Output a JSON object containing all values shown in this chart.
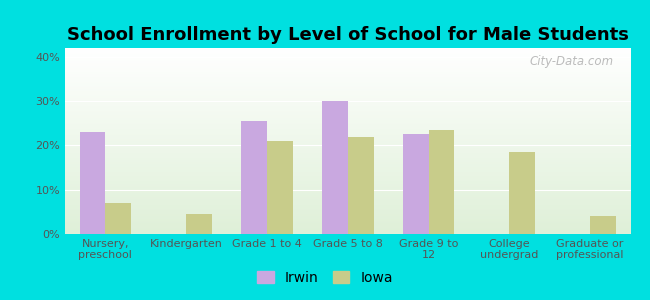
{
  "title": "School Enrollment by Level of School for Male Students",
  "categories": [
    "Nursery,\npreschool",
    "Kindergarten",
    "Grade 1 to 4",
    "Grade 5 to 8",
    "Grade 9 to\n12",
    "College\nundergrad",
    "Graduate or\nprofessional"
  ],
  "irwin_values": [
    23,
    0,
    25.5,
    30,
    22.5,
    0,
    0
  ],
  "iowa_values": [
    7,
    4.5,
    21,
    22,
    23.5,
    18.5,
    4
  ],
  "irwin_color": "#c9a8e0",
  "iowa_color": "#c8cc8a",
  "background_outer": "#00e0e0",
  "grad_top": "#ffffff",
  "grad_bottom": "#dff0d8",
  "title_fontsize": 13,
  "tick_fontsize": 8,
  "legend_fontsize": 10,
  "ylim": [
    0,
    42
  ],
  "yticks": [
    0,
    10,
    20,
    30,
    40
  ],
  "ytick_labels": [
    "0%",
    "10%",
    "20%",
    "30%",
    "40%"
  ],
  "watermark": "City-Data.com",
  "bar_width": 0.32
}
